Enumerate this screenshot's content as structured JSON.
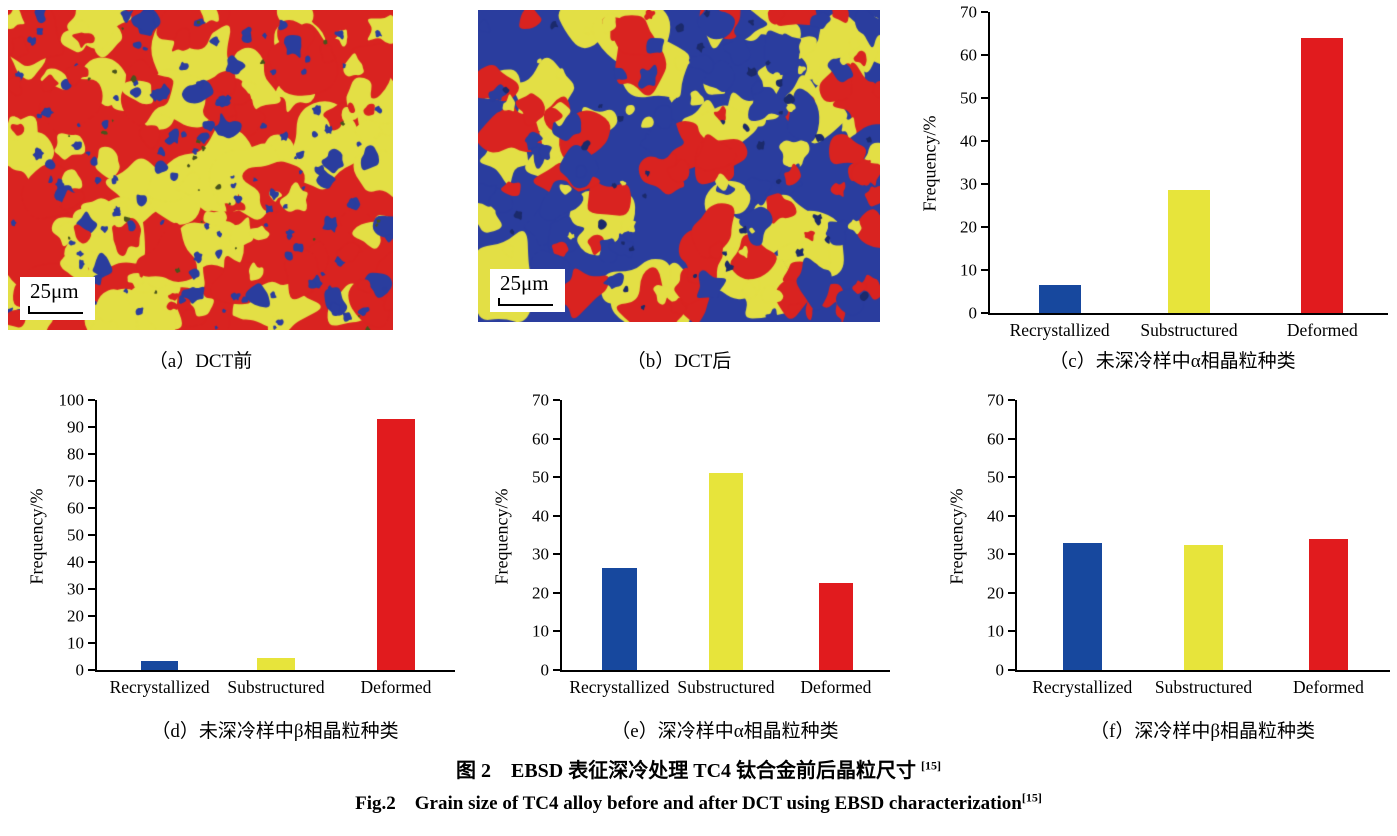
{
  "figure": {
    "caption_cn": "图 2　EBSD 表征深冷处理 TC4 钛合金前后晶粒尺寸 ",
    "caption_cn_sup": "[15]",
    "caption_en": "Fig.2　Grain size of TC4 alloy before and after DCT using EBSD characterization",
    "caption_en_sup": "[15]"
  },
  "micrographs": [
    {
      "label": "（a）DCT前",
      "scale_bar": "25μm"
    },
    {
      "label": "（b）DCT后",
      "scale_bar": "25μm"
    }
  ],
  "colors": {
    "bar_blue": "#17489e",
    "bar_yellow": "#e7e43b",
    "bar_red": "#e11b1e",
    "ebsd_red": "#d92320",
    "ebsd_yellow": "#e3df45",
    "ebsd_blue": "#2a3d9e",
    "axis_black": "#000000"
  },
  "chart_data": [
    {
      "id": "c",
      "type": "bar",
      "title": "（c）未深冷样中α相晶粒种类",
      "ylabel": "Frequency/%",
      "categories": [
        "Recrystallized",
        "Substructured",
        "Deformed"
      ],
      "values": [
        6.5,
        28.5,
        64
      ],
      "ylim": [
        0,
        70
      ],
      "ytick_step": 10,
      "grid": false,
      "legend": "none",
      "colors": [
        "#17489e",
        "#e7e43b",
        "#e11b1e"
      ]
    },
    {
      "id": "d",
      "type": "bar",
      "title": "（d）未深冷样中β相晶粒种类",
      "ylabel": "Frequency/%",
      "categories": [
        "Recrystallized",
        "Substructured",
        "Deformed"
      ],
      "values": [
        3.5,
        4.5,
        93
      ],
      "ylim": [
        0,
        100
      ],
      "ytick_step": 10,
      "grid": false,
      "legend": "none",
      "colors": [
        "#17489e",
        "#e7e43b",
        "#e11b1e"
      ]
    },
    {
      "id": "e",
      "type": "bar",
      "title": "（e）深冷样中α相晶粒种类",
      "ylabel": "Frequency/%",
      "categories": [
        "Recrystallized",
        "Substructured",
        "Deformed"
      ],
      "values": [
        26.5,
        51,
        22.5
      ],
      "ylim": [
        0,
        70
      ],
      "ytick_step": 10,
      "grid": false,
      "legend": "none",
      "colors": [
        "#17489e",
        "#e7e43b",
        "#e11b1e"
      ]
    },
    {
      "id": "f",
      "type": "bar",
      "title": "（f）深冷样中β相晶粒种类",
      "ylabel": "Frequency/%",
      "categories": [
        "Recrystallized",
        "Substructured",
        "Deformed"
      ],
      "values": [
        33,
        32.5,
        34
      ],
      "ylim": [
        0,
        70
      ],
      "ytick_step": 10,
      "grid": false,
      "legend": "none",
      "colors": [
        "#17489e",
        "#e7e43b",
        "#e11b1e"
      ]
    }
  ]
}
